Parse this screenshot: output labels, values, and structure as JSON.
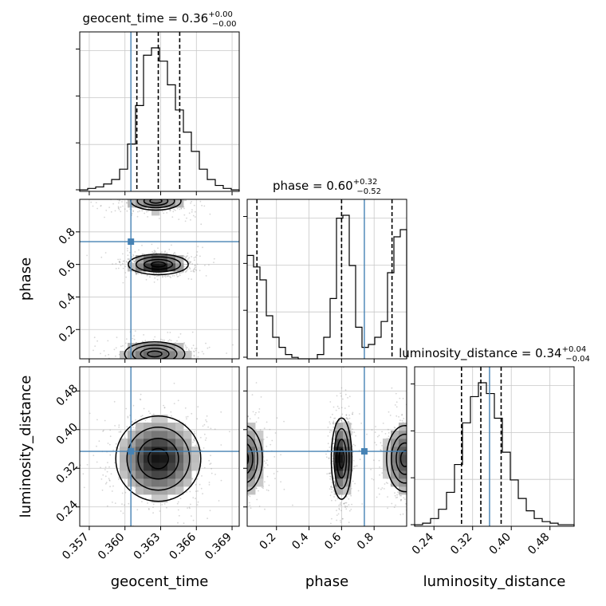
{
  "colors": {
    "truth": "#4682b4",
    "hist": "#000000",
    "grid": "#c8c8c8",
    "scatter": "#8a8a8a"
  },
  "chart_data": {
    "type": "corner",
    "grid": true,
    "parameters": [
      {
        "name": "geocent_time",
        "xlabel": "geocent_time",
        "range": [
          0.3562,
          0.3696
        ],
        "truth": 0.3605,
        "title": {
          "label": "geocent_time = 0.36",
          "plus": "+0.00",
          "minus": "−0.00"
        },
        "quantiles": [
          0.361,
          0.3628,
          0.3646
        ],
        "ticks": [
          0.357,
          0.36,
          0.363,
          0.366,
          0.369
        ],
        "tick_labels": [
          "0.357",
          "0.360",
          "0.363",
          "0.366",
          "0.369"
        ],
        "hist": [
          1,
          2,
          3,
          5,
          8,
          15,
          32,
          58,
          92,
          97,
          88,
          72,
          55,
          40,
          27,
          15,
          8,
          4,
          2,
          1
        ]
      },
      {
        "name": "phase",
        "xlabel": "phase",
        "ylabel": "phase",
        "range": [
          0.02,
          1.0
        ],
        "truth": 0.74,
        "title": {
          "label": "phase = 0.60",
          "plus": "+0.32",
          "minus": "−0.52"
        },
        "quantiles": [
          0.08,
          0.6,
          0.91
        ],
        "ticks": [
          0.2,
          0.4,
          0.6,
          0.8
        ],
        "tick_labels": [
          "0.2",
          "0.4",
          "0.6",
          "0.8"
        ],
        "hist": [
          72,
          64,
          55,
          30,
          15,
          8,
          3,
          1,
          0,
          0,
          0,
          3,
          15,
          42,
          98,
          100,
          65,
          22,
          8,
          10,
          15,
          26,
          60,
          85,
          90
        ]
      },
      {
        "name": "luminosity_distance",
        "xlabel": "luminosity_distance",
        "ylabel": "luminosity_distance",
        "range": [
          0.2,
          0.53
        ],
        "truth": 0.355,
        "title": {
          "label": "luminosity_distance = 0.34",
          "plus": "+0.04",
          "minus": "−0.04"
        },
        "quantiles": [
          0.297,
          0.337,
          0.379
        ],
        "ticks": [
          0.24,
          0.32,
          0.4,
          0.48
        ],
        "tick_labels": [
          "0.24",
          "0.32",
          "0.40",
          "0.48"
        ],
        "hist": [
          1,
          2,
          5,
          11,
          22,
          40,
          67,
          84,
          93,
          86,
          70,
          48,
          30,
          18,
          10,
          5,
          3,
          2,
          1,
          1
        ]
      }
    ],
    "truth_points": [
      {
        "x": "geocent_time",
        "y": "phase",
        "x_value": 0.3605,
        "y_value": 0.74
      },
      {
        "x": "geocent_time",
        "y": "luminosity_distance",
        "x_value": 0.3605,
        "y_value": 0.355
      },
      {
        "x": "phase",
        "y": "luminosity_distance",
        "x_value": 0.74,
        "y_value": 0.355
      }
    ],
    "modes_2d": {
      "geocent_time_phase": [
        {
          "x": 0.3628,
          "y": 0.6,
          "sx": 0.0012,
          "sy": 0.03,
          "w": 1.0
        },
        {
          "x": 0.3626,
          "y": 0.99,
          "sx": 0.0015,
          "sy": 0.04,
          "w": 0.45
        },
        {
          "x": 0.3625,
          "y": 0.05,
          "sx": 0.0017,
          "sy": 0.05,
          "w": 0.5
        }
      ],
      "geocent_time_luminosity_distance": [
        {
          "x": 0.3628,
          "y": 0.34,
          "sx": 0.0017,
          "sy": 0.042,
          "w": 1.0
        }
      ],
      "phase_luminosity_distance": [
        {
          "x": 0.6,
          "y": 0.34,
          "sx": 0.03,
          "sy": 0.04,
          "w": 1.0
        },
        {
          "x": 0.99,
          "y": 0.34,
          "sx": 0.07,
          "sy": 0.042,
          "w": 0.6
        },
        {
          "x": 0.0,
          "y": 0.34,
          "sx": 0.07,
          "sy": 0.042,
          "w": 0.6
        }
      ]
    }
  }
}
